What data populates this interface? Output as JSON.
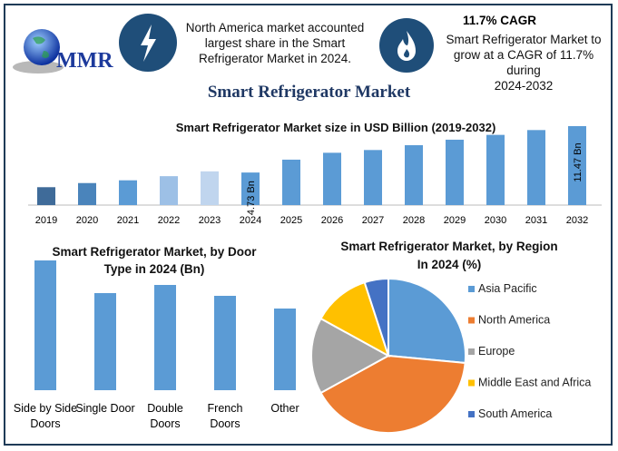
{
  "logo": {
    "text": "MMR"
  },
  "header": {
    "left_icon": "lightning-bolt-icon",
    "left_text": [
      "North America market accounted",
      "largest share in the Smart",
      "Refrigerator Market in 2024."
    ],
    "right_icon": "flame-icon",
    "cagr_title": "11.7% CAGR",
    "right_text": [
      "Smart Refrigerator Market to",
      "grow at a CAGR of 11.7% during",
      "2024-2032"
    ]
  },
  "page_title": "Smart Refrigerator Market",
  "colors": {
    "navy": "#1f4e79",
    "bar": "#5b9bd5",
    "title": "#1f3864"
  },
  "chart_data": [
    {
      "type": "bar",
      "title": "Smart Refrigerator Market size in USD Billion (2019-2032)",
      "categories": [
        "2019",
        "2020",
        "2021",
        "2022",
        "2023",
        "2024",
        "2025",
        "2026",
        "2027",
        "2028",
        "2029",
        "2030",
        "2031",
        "2032"
      ],
      "values": [
        2.6,
        3.2,
        3.6,
        4.2,
        4.9,
        4.73,
        6.6,
        7.6,
        8.0,
        8.7,
        9.5,
        10.2,
        10.9,
        11.47
      ],
      "colors": [
        "#3f6b99",
        "#4a84bb",
        "#5b9bd5",
        "#9dc0e6",
        "#c0d5ee",
        "#5b9bd5",
        "#5b9bd5",
        "#5b9bd5",
        "#5b9bd5",
        "#5b9bd5",
        "#5b9bd5",
        "#5b9bd5",
        "#5b9bd5",
        "#5b9bd5"
      ],
      "data_labels": {
        "2024": "4.73 Bn",
        "2032": "11.47 Bn"
      },
      "ylim": [
        0,
        12
      ],
      "grid": false
    },
    {
      "type": "bar",
      "title": [
        "Smart Refrigerator Market, by Door",
        "Type in 2024 (Bn)"
      ],
      "categories": [
        [
          "Side by Side",
          "Doors"
        ],
        [
          "Single Door"
        ],
        [
          "Double",
          "Doors"
        ],
        [
          "French",
          "Doors"
        ],
        [
          "Other"
        ]
      ],
      "values": [
        143,
        107,
        116,
        104,
        90
      ],
      "color": "#5b9bd5",
      "grid": false
    },
    {
      "type": "pie",
      "title": [
        "Smart Refrigerator Market, by Region",
        "In 2024 (%)"
      ],
      "labels": [
        "Asia Pacific",
        "North America",
        "Europe",
        "Middle East and Africa",
        "South America"
      ],
      "values": [
        26.5,
        40.5,
        16,
        12,
        5
      ],
      "colors": [
        "#5b9bd5",
        "#ed7d31",
        "#a5a5a5",
        "#ffc000",
        "#4472c4"
      ],
      "legend": "right"
    }
  ]
}
